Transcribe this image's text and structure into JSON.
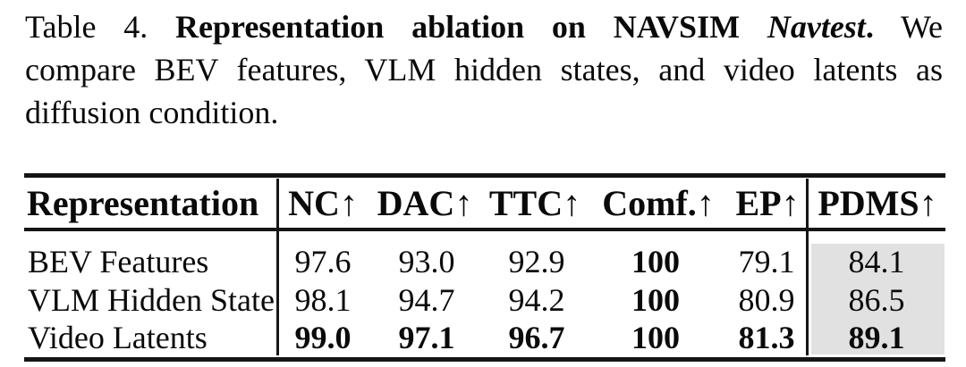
{
  "caption": {
    "label": "Table 4.",
    "title_bold": "Representation ablation on NAVSIM",
    "title_italic": "Navtest",
    "title_period": ".",
    "line1_tail": "We",
    "line2": "compare BEV features, VLM hidden states, and video latents as",
    "line3": "diffusion condition."
  },
  "table": {
    "header": {
      "row_label": "Representation",
      "metrics": [
        "NC↑",
        "DAC↑",
        "TTC↑",
        "Comf.↑",
        "EP↑",
        "PDMS↑"
      ]
    },
    "rows": [
      {
        "name": "BEV Features",
        "nc": "97.6",
        "dac": "93.0",
        "ttc": "92.9",
        "comf": "100",
        "ep": "79.1",
        "pdms": "84.1"
      },
      {
        "name": "VLM Hidden State",
        "nc": "98.1",
        "dac": "94.7",
        "ttc": "94.2",
        "comf": "100",
        "ep": "80.9",
        "pdms": "86.5"
      },
      {
        "name": "Video Latents",
        "nc": "99.0",
        "dac": "97.1",
        "ttc": "96.7",
        "comf": "100",
        "ep": "81.3",
        "pdms": "89.1"
      }
    ],
    "highlight_color": "#e1e1e1"
  }
}
